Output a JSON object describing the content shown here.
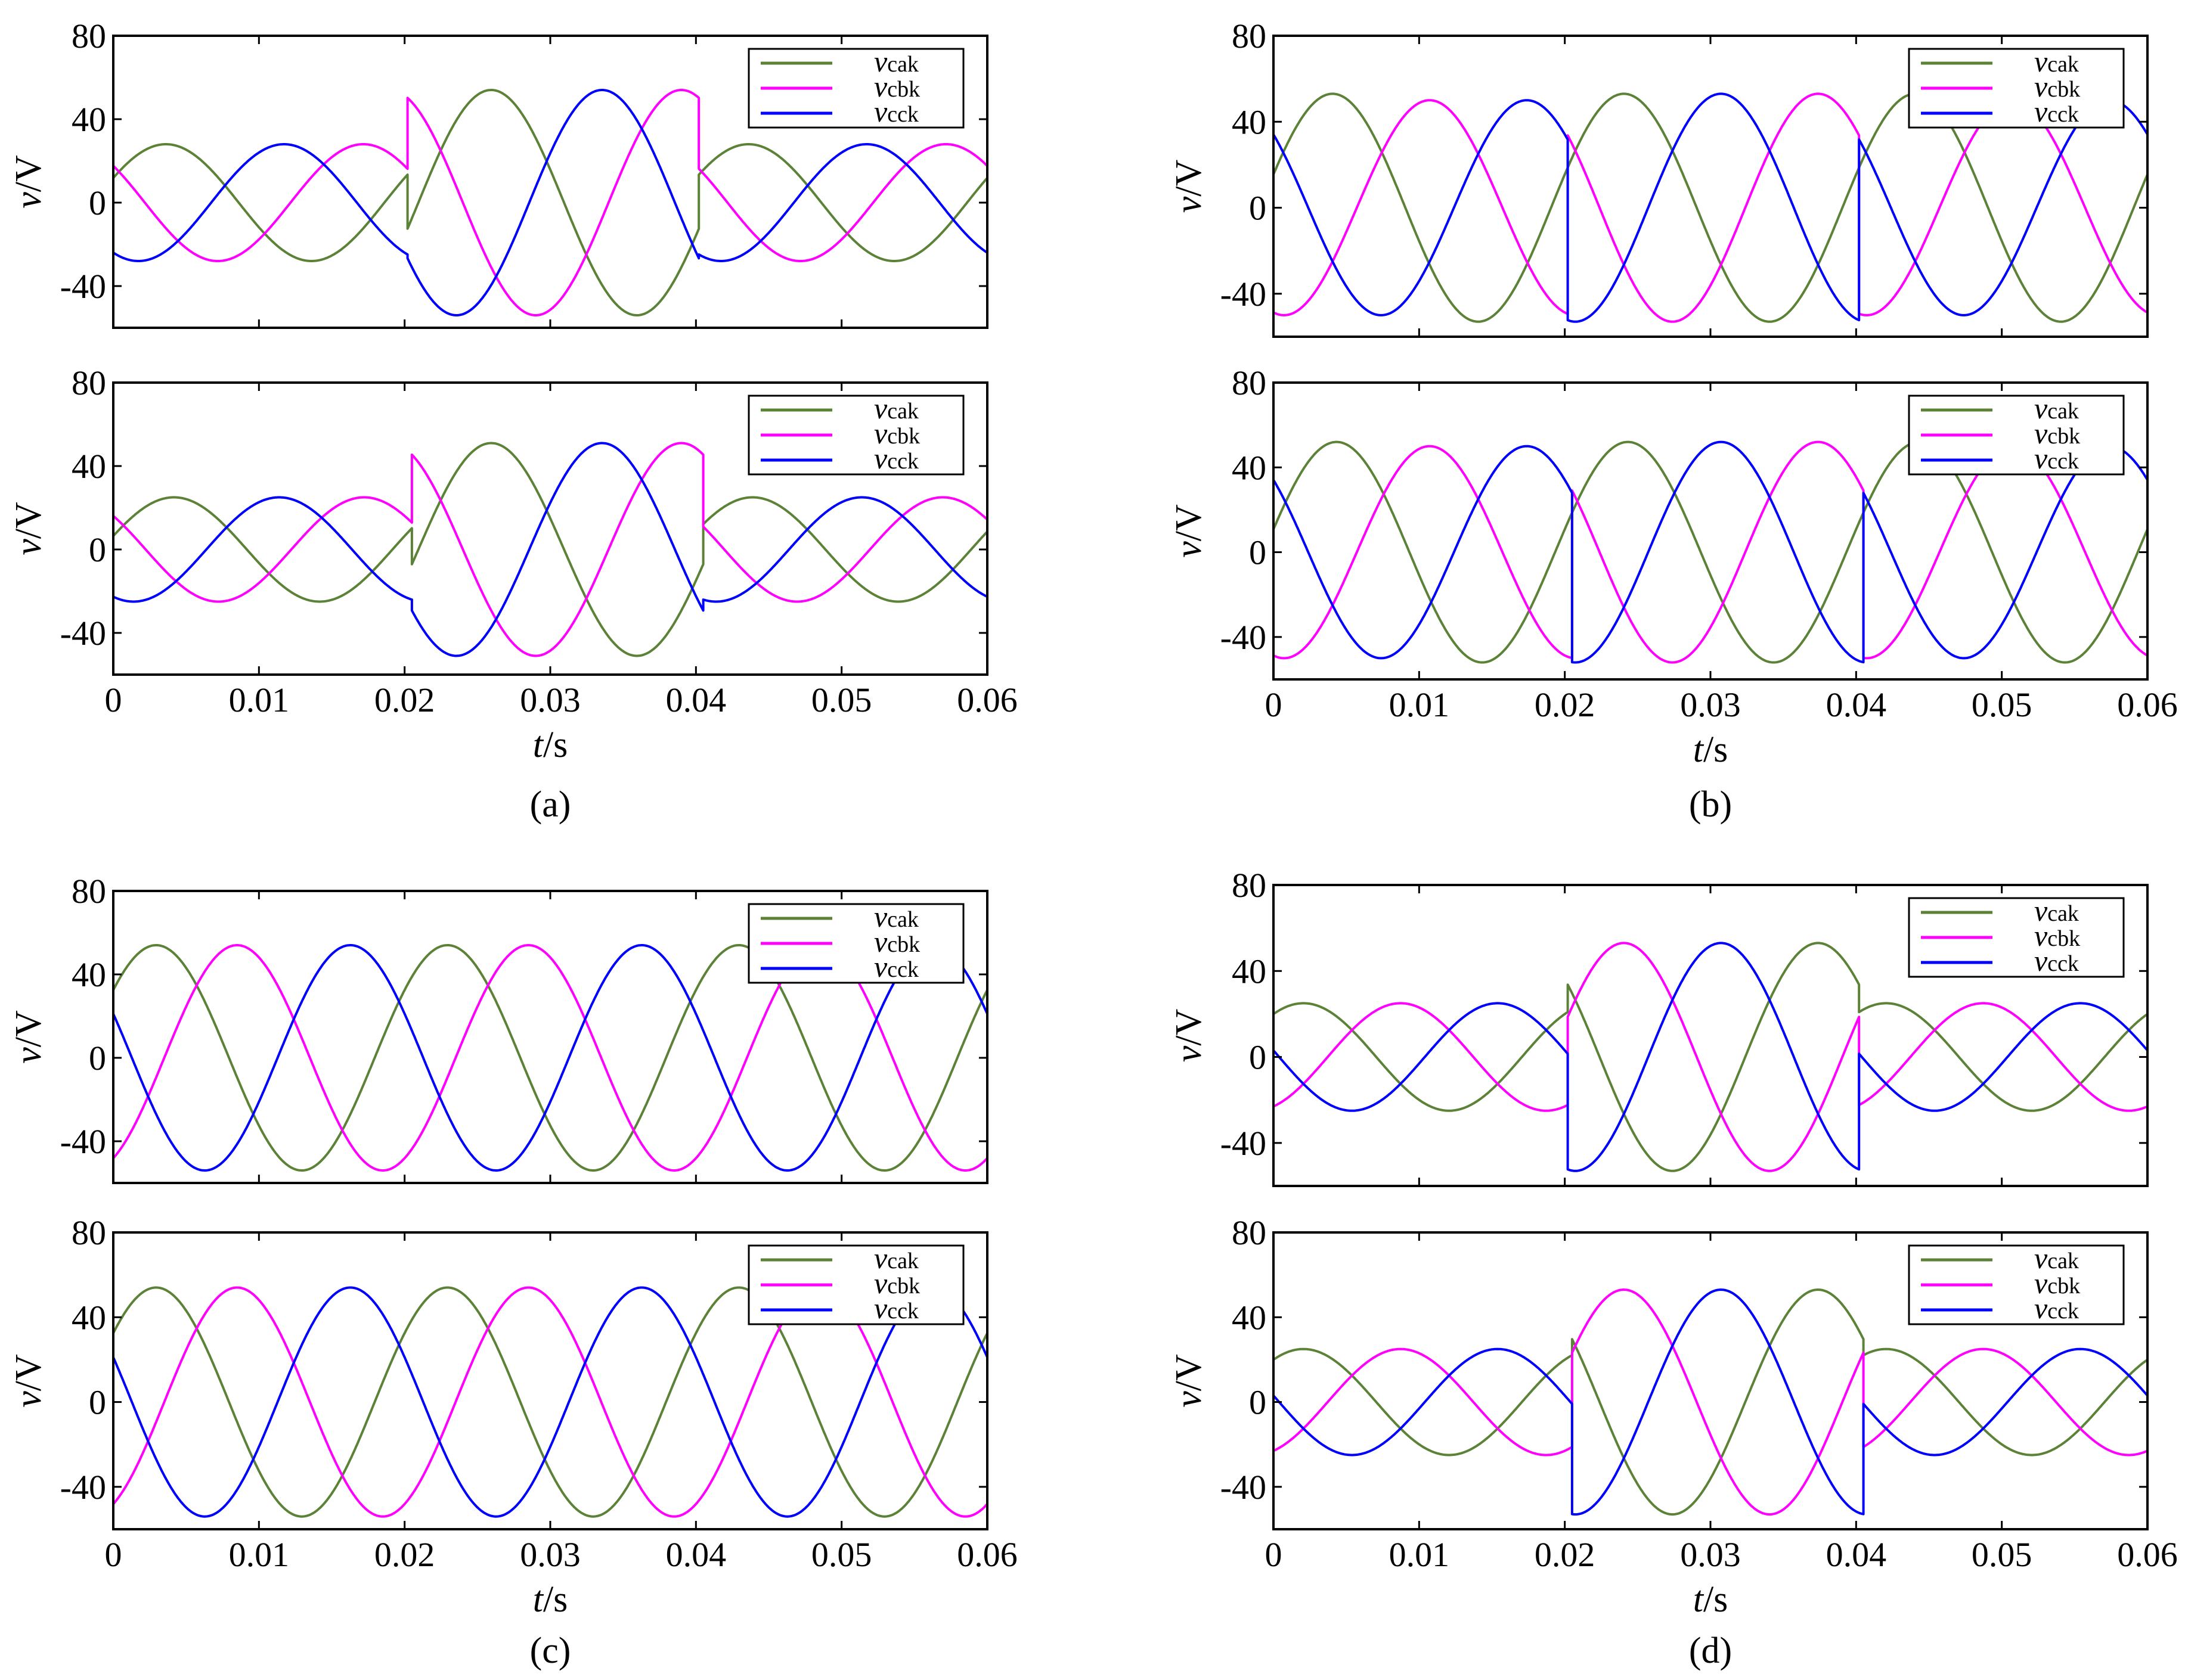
{
  "colors": {
    "vcak": "#5B8236",
    "vcbk": "#FF00FF",
    "vcck": "#0000FF"
  },
  "captions": [
    "(a)",
    "(b)",
    "(c)",
    "(d)"
  ],
  "chart_data": [
    {
      "panel": "(a)",
      "position": "top",
      "type": "line",
      "xlabel": "",
      "ylabel_var": "v",
      "ylabel_unit": "/V",
      "xlim": [
        0,
        0.06
      ],
      "ylim": [
        -60,
        80
      ],
      "yticks": [
        "80",
        "40",
        "0",
        "-40"
      ],
      "yticks_values": [
        80,
        40,
        0,
        -40
      ],
      "xticks": [],
      "xticks_values": [],
      "series": [
        {
          "name": "vcak",
          "sub": "cak",
          "color": "#5B8236",
          "segments": [
            {
              "t": [
                0,
                0.0202
              ],
              "amp": 28,
              "phase": 25
            },
            {
              "t": [
                0.0202,
                0.0402
              ],
              "amp": 54,
              "phase": -17
            },
            {
              "t": [
                0.0402,
                0.06
              ],
              "amp": 28,
              "phase": 25
            }
          ]
        },
        {
          "name": "vcbk",
          "sub": "cbk",
          "color": "#FF00FF",
          "segments": [
            {
              "t": [
                0,
                0.0202
              ],
              "amp": 28,
              "phase": 141
            },
            {
              "t": [
                0.0202,
                0.0402
              ],
              "amp": 54,
              "phase": 108
            },
            {
              "t": [
                0.0402,
                0.06
              ],
              "amp": 28,
              "phase": 141
            }
          ]
        },
        {
          "name": "vcck",
          "sub": "cck",
          "color": "#0000FF",
          "segments": [
            {
              "t": [
                0,
                0.0202
              ],
              "amp": 28,
              "phase": -121
            },
            {
              "t": [
                0.0202,
                0.0402
              ],
              "amp": 54,
              "phase": -154
            },
            {
              "t": [
                0.0402,
                0.06
              ],
              "amp": 28,
              "phase": -121
            }
          ]
        }
      ]
    },
    {
      "panel": "(a)",
      "position": "bottom",
      "type": "line",
      "xlabel_var": "t",
      "xlabel_unit": "/s",
      "ylabel_var": "v",
      "ylabel_unit": "/V",
      "xlim": [
        0,
        0.06
      ],
      "ylim": [
        -60,
        80
      ],
      "yticks": [
        "80",
        "40",
        "0",
        "-40"
      ],
      "yticks_values": [
        80,
        40,
        0,
        -40
      ],
      "xticks": [
        "0",
        "0.01",
        "0.02",
        "0.03",
        "0.04",
        "0.05",
        "0.06"
      ],
      "xticks_values": [
        0,
        0.01,
        0.02,
        0.03,
        0.04,
        0.05,
        0.06
      ],
      "series": [
        {
          "name": "vcak",
          "sub": "cak",
          "color": "#5B8236",
          "segments": [
            {
              "t": [
                0,
                0.0205
              ],
              "amp": 25,
              "phase": 15
            },
            {
              "t": [
                0.0205,
                0.0405
              ],
              "amp": 51,
              "phase": -17
            },
            {
              "t": [
                0.0405,
                0.06
              ],
              "amp": 25,
              "phase": 20
            }
          ]
        },
        {
          "name": "vcbk",
          "sub": "cbk",
          "color": "#FF00FF",
          "segments": [
            {
              "t": [
                0,
                0.0205
              ],
              "amp": 25,
              "phase": 140
            },
            {
              "t": [
                0.0205,
                0.0405
              ],
              "amp": 51,
              "phase": 108
            },
            {
              "t": [
                0.0405,
                0.06
              ],
              "amp": 25,
              "phase": 145
            }
          ]
        },
        {
          "name": "vcck",
          "sub": "cck",
          "color": "#0000FF",
          "segments": [
            {
              "t": [
                0,
                0.0205
              ],
              "amp": 25,
              "phase": -115
            },
            {
              "t": [
                0.0205,
                0.0405
              ],
              "amp": 51,
              "phase": -154
            },
            {
              "t": [
                0.0405,
                0.06
              ],
              "amp": 25,
              "phase": -115
            }
          ]
        }
      ]
    },
    {
      "panel": "(b)",
      "position": "top",
      "type": "line",
      "xlabel": "",
      "ylabel_var": "v",
      "ylabel_unit": "/V",
      "xlim": [
        0,
        0.06
      ],
      "ylim": [
        -60,
        80
      ],
      "yticks": [
        "80",
        "40",
        "0",
        "-40"
      ],
      "yticks_values": [
        80,
        40,
        0,
        -40
      ],
      "xticks": [],
      "xticks_values": [],
      "series": [
        {
          "name": "vcak",
          "sub": "cak",
          "color": "#5B8236",
          "segments": [
            {
              "t": [
                0,
                0.06
              ],
              "amp": 53,
              "phase": 17
            }
          ]
        },
        {
          "name": "vcbk",
          "sub": "cbk",
          "color": "#FF00FF",
          "segments": [
            {
              "t": [
                0,
                0.0202
              ],
              "amp": 50,
              "phase": -103
            },
            {
              "t": [
                0.0202,
                0.0402
              ],
              "amp": 53,
              "phase": 137
            },
            {
              "t": [
                0.0402,
                0.06
              ],
              "amp": 50,
              "phase": -103
            }
          ]
        },
        {
          "name": "vcck",
          "sub": "cck",
          "color": "#0000FF",
          "segments": [
            {
              "t": [
                0,
                0.0202
              ],
              "amp": 50,
              "phase": 137
            },
            {
              "t": [
                0.0202,
                0.0402
              ],
              "amp": 53,
              "phase": -103
            },
            {
              "t": [
                0.0402,
                0.06
              ],
              "amp": 50,
              "phase": 137
            }
          ]
        }
      ]
    },
    {
      "panel": "(b)",
      "position": "bottom",
      "type": "line",
      "xlabel_var": "t",
      "xlabel_unit": "/s",
      "ylabel_var": "v",
      "ylabel_unit": "/V",
      "xlim": [
        0,
        0.06
      ],
      "ylim": [
        -60,
        80
      ],
      "yticks": [
        "80",
        "40",
        "0",
        "-40"
      ],
      "yticks_values": [
        80,
        40,
        0,
        -40
      ],
      "xticks": [
        "0",
        "0.01",
        "0.02",
        "0.03",
        "0.04",
        "0.05",
        "0.06"
      ],
      "xticks_values": [
        0,
        0.01,
        0.02,
        0.03,
        0.04,
        0.05,
        0.06
      ],
      "series": [
        {
          "name": "vcak",
          "sub": "cak",
          "color": "#5B8236",
          "segments": [
            {
              "t": [
                0,
                0.06
              ],
              "amp": 52,
              "phase": 12
            }
          ]
        },
        {
          "name": "vcbk",
          "sub": "cbk",
          "color": "#FF00FF",
          "segments": [
            {
              "t": [
                0,
                0.0205
              ],
              "amp": 50,
              "phase": -103
            },
            {
              "t": [
                0.0205,
                0.0405
              ],
              "amp": 52,
              "phase": 137
            },
            {
              "t": [
                0.0405,
                0.06
              ],
              "amp": 50,
              "phase": -103
            }
          ]
        },
        {
          "name": "vcck",
          "sub": "cck",
          "color": "#0000FF",
          "segments": [
            {
              "t": [
                0,
                0.0205
              ],
              "amp": 50,
              "phase": 137
            },
            {
              "t": [
                0.0205,
                0.0405
              ],
              "amp": 52,
              "phase": -103
            },
            {
              "t": [
                0.0405,
                0.06
              ],
              "amp": 50,
              "phase": 137
            }
          ]
        }
      ]
    },
    {
      "panel": "(c)",
      "position": "top",
      "type": "line",
      "xlabel": "",
      "ylabel_var": "v",
      "ylabel_unit": "/V",
      "xlim": [
        0,
        0.06
      ],
      "ylim": [
        -60,
        80
      ],
      "yticks": [
        "80",
        "40",
        "0",
        "-40"
      ],
      "yticks_values": [
        80,
        40,
        0,
        -40
      ],
      "xticks": [],
      "xticks_values": [],
      "series": [
        {
          "name": "vcak",
          "sub": "cak",
          "color": "#5B8236",
          "segments": [
            {
              "t": [
                0,
                0.06
              ],
              "amp": 54,
              "phase": 37
            }
          ]
        },
        {
          "name": "vcbk",
          "sub": "cbk",
          "color": "#FF00FF",
          "segments": [
            {
              "t": [
                0,
                0.06
              ],
              "amp": 54,
              "phase": -63
            }
          ]
        },
        {
          "name": "vcck",
          "sub": "cck",
          "color": "#0000FF",
          "segments": [
            {
              "t": [
                0,
                0.06
              ],
              "amp": 54,
              "phase": 157
            }
          ]
        }
      ]
    },
    {
      "panel": "(c)",
      "position": "bottom",
      "type": "line",
      "xlabel_var": "t",
      "xlabel_unit": "/s",
      "ylabel_var": "v",
      "ylabel_unit": "/V",
      "xlim": [
        0,
        0.06
      ],
      "ylim": [
        -60,
        80
      ],
      "yticks": [
        "80",
        "40",
        "0",
        "-40"
      ],
      "yticks_values": [
        80,
        40,
        0,
        -40
      ],
      "xticks": [
        "0",
        "0.01",
        "0.02",
        "0.03",
        "0.04",
        "0.05",
        "0.06"
      ],
      "xticks_values": [
        0,
        0.01,
        0.02,
        0.03,
        0.04,
        0.05,
        0.06
      ],
      "series": [
        {
          "name": "vcak",
          "sub": "cak",
          "color": "#5B8236",
          "segments": [
            {
              "t": [
                0,
                0.06
              ],
              "amp": 54,
              "phase": 37
            }
          ]
        },
        {
          "name": "vcbk",
          "sub": "cbk",
          "color": "#FF00FF",
          "segments": [
            {
              "t": [
                0,
                0.06
              ],
              "amp": 54,
              "phase": -63
            }
          ]
        },
        {
          "name": "vcck",
          "sub": "cck",
          "color": "#0000FF",
          "segments": [
            {
              "t": [
                0,
                0.06
              ],
              "amp": 54,
              "phase": 157
            }
          ]
        }
      ]
    },
    {
      "panel": "(d)",
      "position": "top",
      "type": "line",
      "xlabel": "",
      "ylabel_var": "v",
      "ylabel_unit": "/V",
      "xlim": [
        0,
        0.06
      ],
      "ylim": [
        -60,
        80
      ],
      "yticks": [
        "80",
        "40",
        "0",
        "-40"
      ],
      "yticks_values": [
        80,
        40,
        0,
        -40
      ],
      "xticks": [],
      "xticks_values": [],
      "series": [
        {
          "name": "vcak",
          "sub": "cak",
          "color": "#5B8236",
          "segments": [
            {
              "t": [
                0,
                0.0202
              ],
              "amp": 25,
              "phase": 53
            },
            {
              "t": [
                0.0202,
                0.0402
              ],
              "amp": 53,
              "phase": 137
            },
            {
              "t": [
                0.0402,
                0.06
              ],
              "amp": 25,
              "phase": 53
            }
          ]
        },
        {
          "name": "vcbk",
          "sub": "cbk",
          "color": "#FF00FF",
          "segments": [
            {
              "t": [
                0,
                0.0202
              ],
              "amp": 25,
              "phase": -67
            },
            {
              "t": [
                0.0202,
                0.0402
              ],
              "amp": 53,
              "phase": 17
            },
            {
              "t": [
                0.0402,
                0.06
              ],
              "amp": 25,
              "phase": -67
            }
          ]
        },
        {
          "name": "vcck",
          "sub": "cck",
          "color": "#0000FF",
          "segments": [
            {
              "t": [
                0,
                0.0202
              ],
              "amp": 25,
              "phase": 173
            },
            {
              "t": [
                0.0202,
                0.0402
              ],
              "amp": 53,
              "phase": -103
            },
            {
              "t": [
                0.0402,
                0.06
              ],
              "amp": 25,
              "phase": 173
            }
          ]
        }
      ]
    },
    {
      "panel": "(d)",
      "position": "bottom",
      "type": "line",
      "xlabel_var": "t",
      "xlabel_unit": "/s",
      "ylabel_var": "v",
      "ylabel_unit": "/V",
      "xlim": [
        0,
        0.06
      ],
      "ylim": [
        -60,
        80
      ],
      "yticks": [
        "80",
        "40",
        "0",
        "-40"
      ],
      "yticks_values": [
        80,
        40,
        0,
        -40
      ],
      "xticks": [
        "0",
        "0.01",
        "0.02",
        "0.03",
        "0.04",
        "0.05",
        "0.06"
      ],
      "xticks_values": [
        0,
        0.01,
        0.02,
        0.03,
        0.04,
        0.05,
        0.06
      ],
      "series": [
        {
          "name": "vcak",
          "sub": "cak",
          "color": "#5B8236",
          "segments": [
            {
              "t": [
                0,
                0.0205
              ],
              "amp": 25,
              "phase": 53
            },
            {
              "t": [
                0.0205,
                0.0405
              ],
              "amp": 53,
              "phase": 137
            },
            {
              "t": [
                0.0405,
                0.06
              ],
              "amp": 25,
              "phase": 53
            }
          ]
        },
        {
          "name": "vcbk",
          "sub": "cbk",
          "color": "#FF00FF",
          "segments": [
            {
              "t": [
                0,
                0.0205
              ],
              "amp": 25,
              "phase": -67
            },
            {
              "t": [
                0.0205,
                0.0405
              ],
              "amp": 53,
              "phase": 17
            },
            {
              "t": [
                0.0405,
                0.06
              ],
              "amp": 25,
              "phase": -67
            }
          ]
        },
        {
          "name": "vcck",
          "sub": "cck",
          "color": "#0000FF",
          "segments": [
            {
              "t": [
                0,
                0.0205
              ],
              "amp": 25,
              "phase": 173
            },
            {
              "t": [
                0.0205,
                0.0405
              ],
              "amp": 53,
              "phase": -103
            },
            {
              "t": [
                0.0405,
                0.06
              ],
              "amp": 25,
              "phase": 173
            }
          ]
        }
      ]
    }
  ]
}
